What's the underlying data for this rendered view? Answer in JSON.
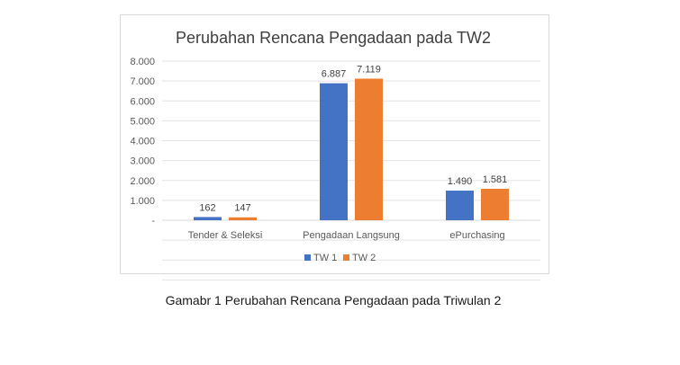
{
  "chart_data": {
    "type": "bar",
    "title": "Perubahan Rencana Pengadaan pada TW2",
    "categories": [
      "Tender & Seleksi",
      "Pengadaan Langsung",
      "ePurchasing"
    ],
    "series": [
      {
        "name": "TW 1",
        "color": "#4472C4",
        "values": [
          162,
          6887,
          1490
        ],
        "labels": [
          "162",
          "6.887",
          "1.490"
        ]
      },
      {
        "name": "TW 2",
        "color": "#ED7D31",
        "values": [
          147,
          7119,
          1581
        ],
        "labels": [
          "147",
          "7.119",
          "1.581"
        ]
      }
    ],
    "ylim": [
      0,
      8000
    ],
    "yticks": [
      0,
      1000,
      2000,
      3000,
      4000,
      5000,
      6000,
      7000,
      8000
    ],
    "ytick_labels": [
      "-",
      "1.000",
      "2.000",
      "3.000",
      "4.000",
      "5.000",
      "6.000",
      "7.000",
      "8.000"
    ],
    "grid": true,
    "legend_position": "bottom"
  },
  "caption": "Gamabr 1 Perubahan Rencana Pengadaan pada Triwulan 2"
}
